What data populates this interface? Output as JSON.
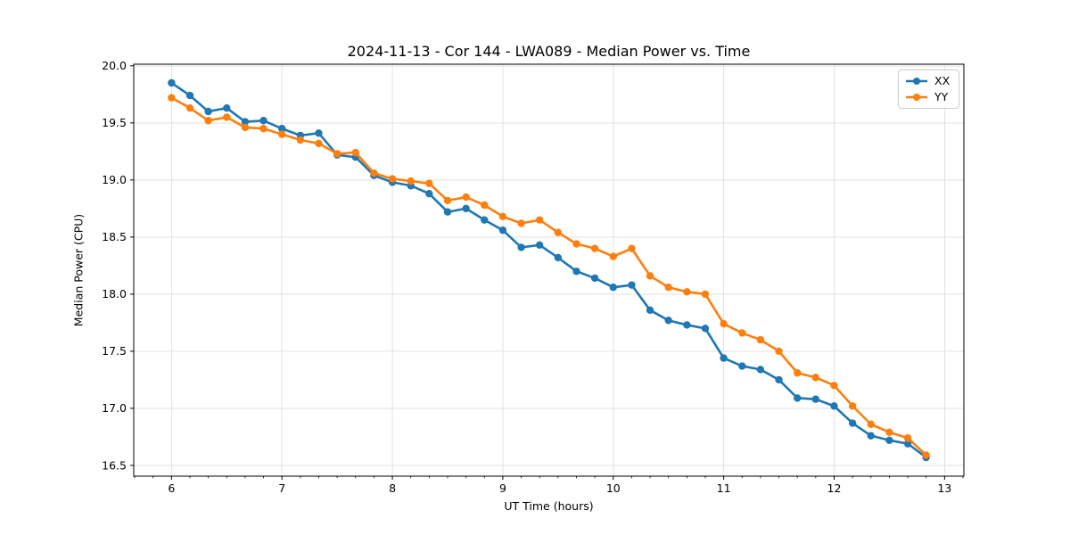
{
  "chart_data": {
    "type": "line",
    "title": "2024-11-13 - Cor 144 - LWA089 - Median Power vs. Time",
    "xlabel": "UT Time (hours)",
    "ylabel": "Median Power (CPU)",
    "xlim": [
      5.658,
      13.175
    ],
    "ylim": [
      16.406,
      20.014
    ],
    "xticks": [
      6,
      7,
      8,
      9,
      10,
      11,
      12,
      13
    ],
    "yticks": [
      16.5,
      17.0,
      17.5,
      18.0,
      18.5,
      19.0,
      19.5,
      20.0
    ],
    "minor_xtick_step_minutes": 10,
    "grid": true,
    "legend_position": "upper right",
    "grid_color": "#e2e2e2",
    "x": [
      6.0,
      6.167,
      6.333,
      6.5,
      6.667,
      6.833,
      7.0,
      7.167,
      7.333,
      7.5,
      7.667,
      7.833,
      8.0,
      8.167,
      8.333,
      8.5,
      8.667,
      8.833,
      9.0,
      9.167,
      9.333,
      9.5,
      9.667,
      9.833,
      10.0,
      10.167,
      10.333,
      10.5,
      10.667,
      10.833,
      11.0,
      11.167,
      11.333,
      11.5,
      11.667,
      11.833,
      12.0,
      12.167,
      12.333,
      12.5,
      12.667,
      12.833
    ],
    "series": [
      {
        "name": "XX",
        "color": "#1f77b4",
        "values": [
          19.85,
          19.74,
          19.6,
          19.63,
          19.51,
          19.52,
          19.45,
          19.39,
          19.41,
          19.22,
          19.2,
          19.04,
          18.98,
          18.95,
          18.88,
          18.72,
          18.75,
          18.65,
          18.56,
          18.41,
          18.43,
          18.32,
          18.2,
          18.14,
          18.06,
          18.08,
          17.86,
          17.77,
          17.73,
          17.7,
          17.44,
          17.37,
          17.34,
          17.25,
          17.09,
          17.08,
          17.02,
          16.87,
          16.76,
          16.72,
          16.69,
          16.57
        ]
      },
      {
        "name": "YY",
        "color": "#ff7f0e",
        "values": [
          19.72,
          19.63,
          19.52,
          19.55,
          19.46,
          19.45,
          19.4,
          19.35,
          19.32,
          19.23,
          19.24,
          19.06,
          19.01,
          18.99,
          18.97,
          18.82,
          18.85,
          18.78,
          18.68,
          18.62,
          18.65,
          18.54,
          18.44,
          18.4,
          18.33,
          18.4,
          18.16,
          18.06,
          18.02,
          18.0,
          17.74,
          17.66,
          17.6,
          17.5,
          17.31,
          17.27,
          17.2,
          17.02,
          16.86,
          16.79,
          16.74,
          16.59
        ]
      }
    ]
  }
}
